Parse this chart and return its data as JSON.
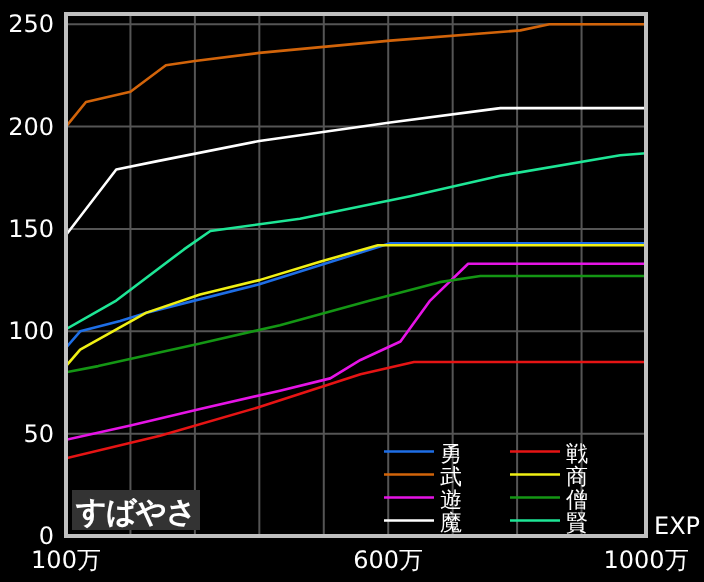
{
  "chart_data": {
    "type": "line",
    "title": "すばやさ",
    "xlabel": "EXP",
    "xlim": [
      100,
      1000
    ],
    "ylim": [
      0,
      255
    ],
    "xticks": [
      {
        "value": 100,
        "label": "100万"
      },
      {
        "value": 200,
        "label": null
      },
      {
        "value": 300,
        "label": null
      },
      {
        "value": 400,
        "label": null
      },
      {
        "value": 500,
        "label": null
      },
      {
        "value": 600,
        "label": "600万"
      },
      {
        "value": 700,
        "label": null
      },
      {
        "value": 800,
        "label": null
      },
      {
        "value": 900,
        "label": null
      },
      {
        "value": 1000,
        "label": "1000万"
      }
    ],
    "yticks": [
      0,
      50,
      100,
      150,
      200,
      250
    ],
    "grid": true,
    "legend": "bottom right",
    "marker": "none",
    "line_style": "solid",
    "series": [
      {
        "name": "勇",
        "color": "#1e6ee6",
        "x": [
          100,
          122,
          184,
          224,
          400,
          603,
          1000
        ],
        "values": [
          92,
          100,
          105,
          109,
          123,
          143,
          143
        ]
      },
      {
        "name": "戦",
        "color": "#e61414",
        "x": [
          100,
          246,
          400,
          557,
          640,
          1000
        ],
        "values": [
          38,
          49,
          63,
          79,
          85,
          85
        ]
      },
      {
        "name": "武",
        "color": "#d2640a",
        "x": [
          100,
          131,
          200,
          255,
          300,
          400,
          603,
          805,
          850,
          1000
        ],
        "values": [
          200,
          212,
          217,
          230,
          232,
          236,
          242,
          247,
          250,
          250
        ]
      },
      {
        "name": "商",
        "color": "#f0f014",
        "x": [
          100,
          122,
          224,
          308,
          400,
          494,
          584,
          1000
        ],
        "values": [
          83,
          91,
          109,
          118,
          125,
          134,
          142,
          142
        ]
      },
      {
        "name": "遊",
        "color": "#e614e6",
        "x": [
          100,
          200,
          308,
          432,
          510,
          557,
          619,
          665,
          724,
          1000
        ],
        "values": [
          47,
          54,
          62,
          71,
          77,
          86,
          95,
          115,
          133,
          133
        ]
      },
      {
        "name": "僧",
        "color": "#149614",
        "x": [
          100,
          150,
          308,
          432,
          572,
          680,
          743,
          1000
        ],
        "values": [
          80,
          83,
          94,
          103,
          115,
          124,
          127,
          127
        ]
      },
      {
        "name": "魔",
        "color": "#ffffff",
        "x": [
          100,
          178,
          240,
          400,
          603,
          774,
          1000
        ],
        "values": [
          147,
          179,
          183,
          193,
          202,
          209,
          209
        ]
      },
      {
        "name": "賢",
        "color": "#1ee696",
        "x": [
          100,
          178,
          283,
          324,
          463,
          634,
          774,
          960,
          1000
        ],
        "values": [
          101,
          115,
          140,
          149,
          155,
          166,
          176,
          186,
          187
        ]
      }
    ]
  }
}
